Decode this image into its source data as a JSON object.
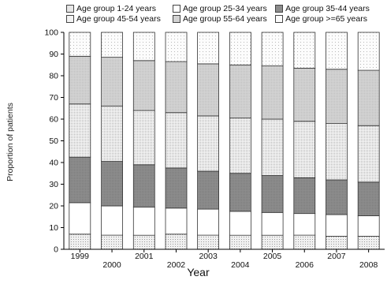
{
  "chart_data": {
    "type": "stacked-bar",
    "title": "",
    "xlabel": "Year",
    "ylabel": "Proportion of patients",
    "ylim": [
      0,
      100
    ],
    "yticks": [
      0,
      10,
      20,
      30,
      40,
      50,
      60,
      70,
      80,
      90,
      100
    ],
    "grid": false,
    "legend_position": "top",
    "categories": [
      "1999",
      "2000",
      "2001",
      "2002",
      "2003",
      "2004",
      "2005",
      "2006",
      "2007",
      "2008"
    ],
    "series": [
      {
        "name": "Age group 1-24 years",
        "pattern": "light-dots",
        "color": "#ececec",
        "values": [
          7,
          6.5,
          6.5,
          7,
          6.5,
          6.5,
          6.5,
          6.5,
          6,
          6
        ]
      },
      {
        "name": "Age group 25-34 years",
        "pattern": "white",
        "color": "#ffffff",
        "values": [
          14.5,
          13.5,
          13,
          12,
          12,
          11,
          10.5,
          10,
          10,
          9.5
        ]
      },
      {
        "name": "Age group 35-44 years",
        "pattern": "dark-gray",
        "color": "#8c8c8c",
        "values": [
          21,
          20.5,
          19.5,
          18.5,
          17.5,
          17.5,
          17,
          16.5,
          16,
          15.5
        ]
      },
      {
        "name": "Age group 45-54 years",
        "pattern": "dense-dots",
        "color": "#f5f5f5",
        "values": [
          24.5,
          25.5,
          25,
          25.5,
          25.5,
          25.5,
          26,
          26,
          26,
          26
        ]
      },
      {
        "name": "Age group 55-64 years",
        "pattern": "medium-gray",
        "color": "#d2d2d2",
        "values": [
          22,
          22.5,
          23,
          23.5,
          24,
          24.5,
          24.5,
          24.5,
          25,
          25.5
        ]
      },
      {
        "name": "Age group >=65 years",
        "pattern": "sparse-dots",
        "color": "#fbfbfb",
        "values": [
          11,
          11.5,
          13,
          13.5,
          14.5,
          15,
          15.5,
          16.5,
          17,
          17.5
        ]
      }
    ]
  }
}
